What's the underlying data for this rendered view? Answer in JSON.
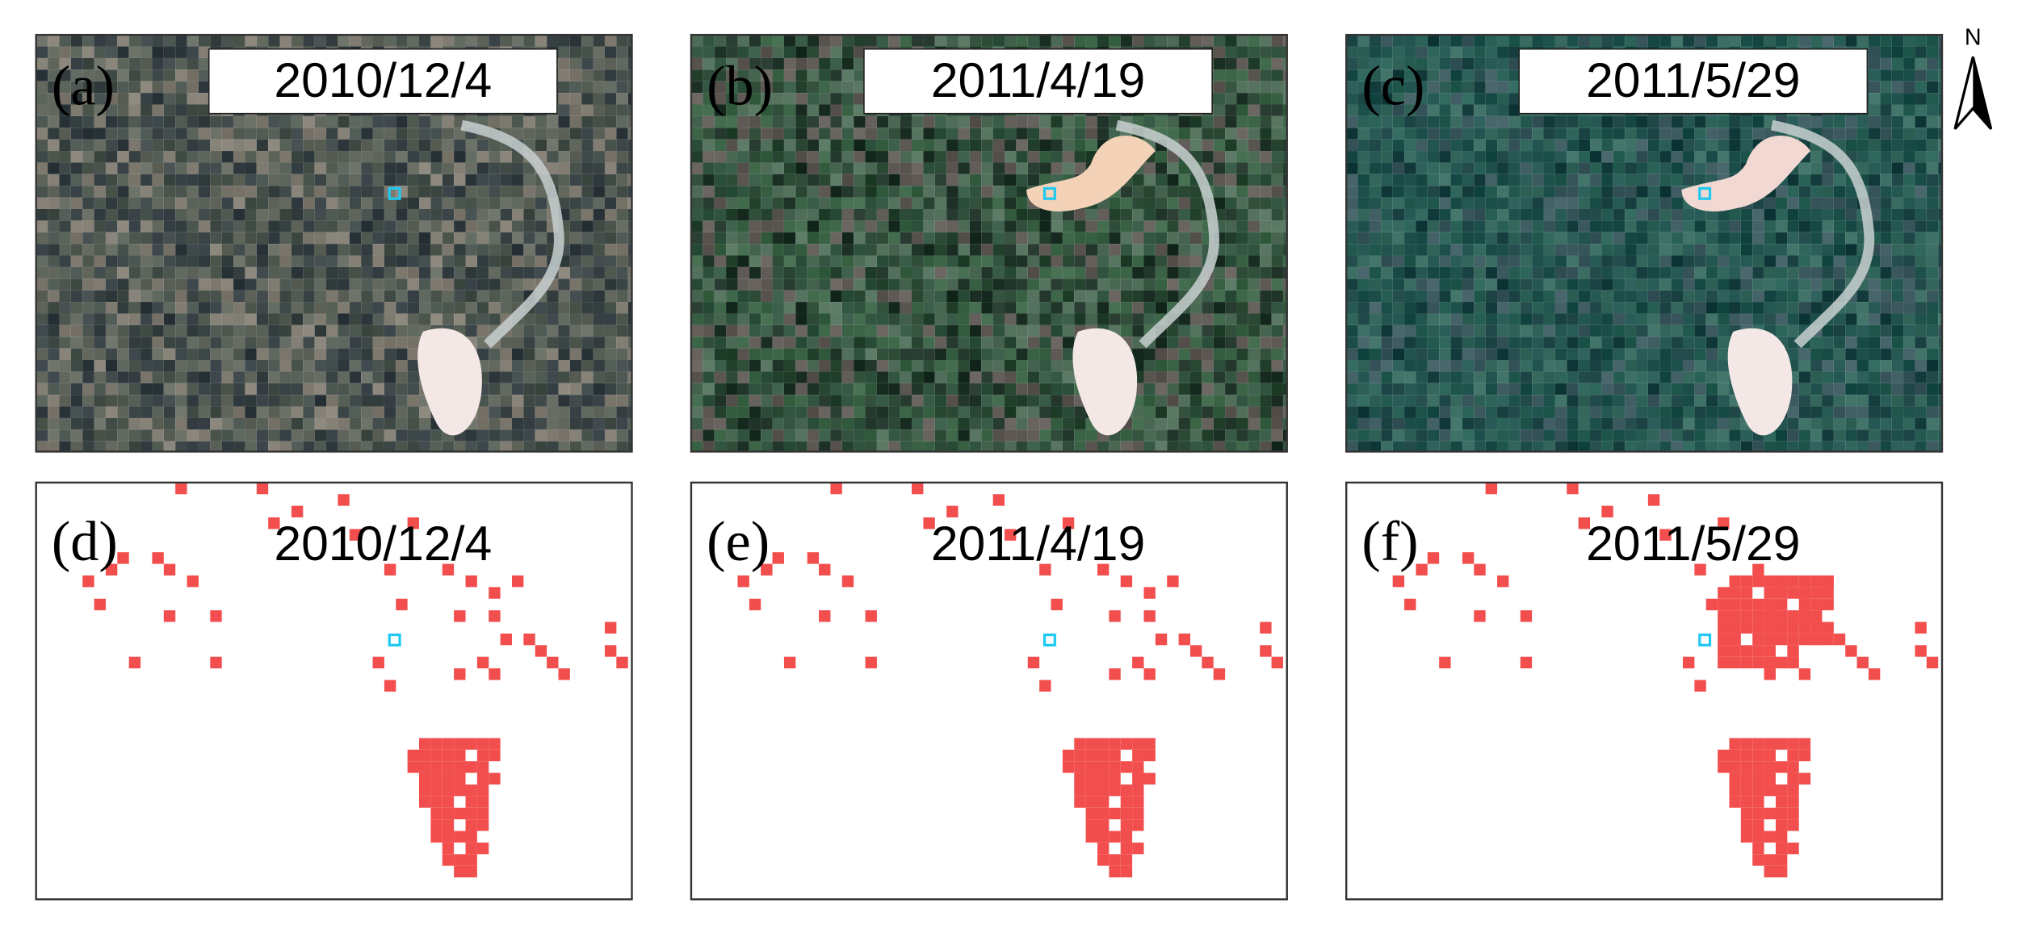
{
  "panels": [
    {
      "label": "(a)",
      "date": "2010/12/4"
    },
    {
      "label": "(b)",
      "date": "2011/4/19"
    },
    {
      "label": "(c)",
      "date": "2011/5/29"
    },
    {
      "label": "(d)",
      "date": "2010/12/4"
    },
    {
      "label": "(e)",
      "date": "2011/4/19"
    },
    {
      "label": "(f)",
      "date": "2011/5/29"
    }
  ],
  "north": "N"
}
